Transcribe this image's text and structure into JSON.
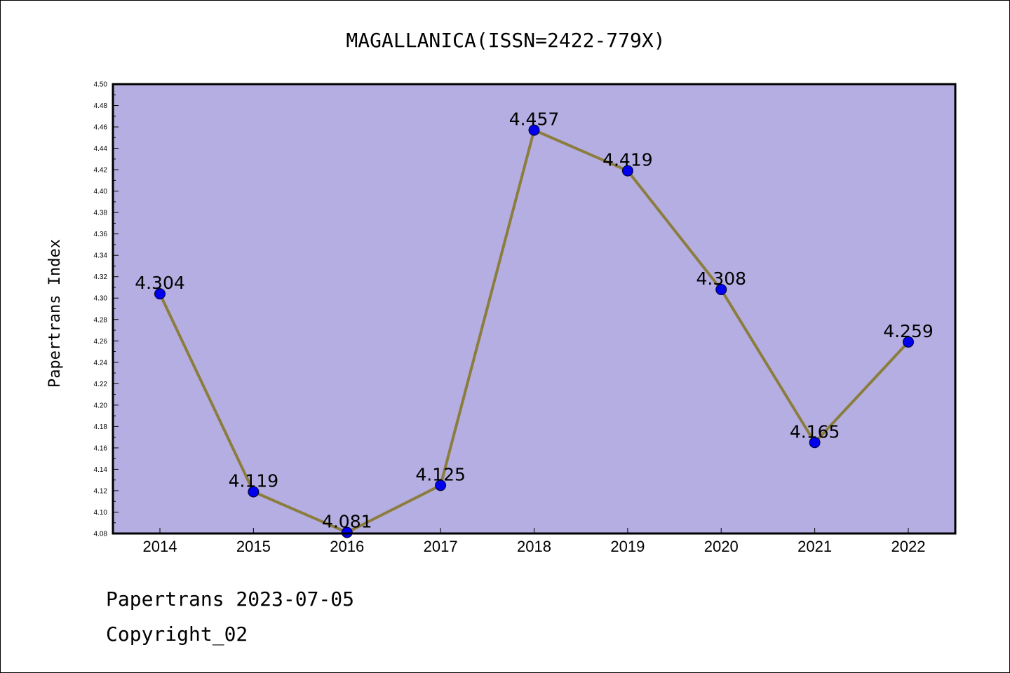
{
  "chart_data": {
    "type": "line",
    "title": "MAGALLANICA(ISSN=2422-779X)",
    "xlabel": "",
    "ylabel": "Papertrans Index",
    "categories": [
      "2014",
      "2015",
      "2016",
      "2017",
      "2018",
      "2019",
      "2020",
      "2021",
      "2022"
    ],
    "series": [
      {
        "values": [
          4.304,
          4.119,
          4.081,
          4.125,
          4.457,
          4.419,
          4.308,
          4.165,
          4.259
        ],
        "labels": [
          "4.304",
          "4.119",
          "4.081",
          "4.125",
          "4.457",
          "4.419",
          "4.308",
          "4.165",
          "4.259"
        ]
      }
    ],
    "ylim": [
      4.08,
      4.5
    ],
    "yticks": [
      "4.08",
      "4.10",
      "4.12",
      "4.14",
      "4.16",
      "4.18",
      "4.20",
      "4.22",
      "4.24",
      "4.26",
      "4.28",
      "4.30",
      "4.32",
      "4.34",
      "4.36",
      "4.38",
      "4.40",
      "4.42",
      "4.44",
      "4.46",
      "4.48",
      "4.50"
    ],
    "grid": false,
    "colors": {
      "plot_background": "#b5aee2",
      "line": "#8b7d3e",
      "marker": "#0000ee"
    }
  },
  "footer": {
    "line1": "Papertrans 2023-07-05",
    "line2": "Copyright_02"
  }
}
